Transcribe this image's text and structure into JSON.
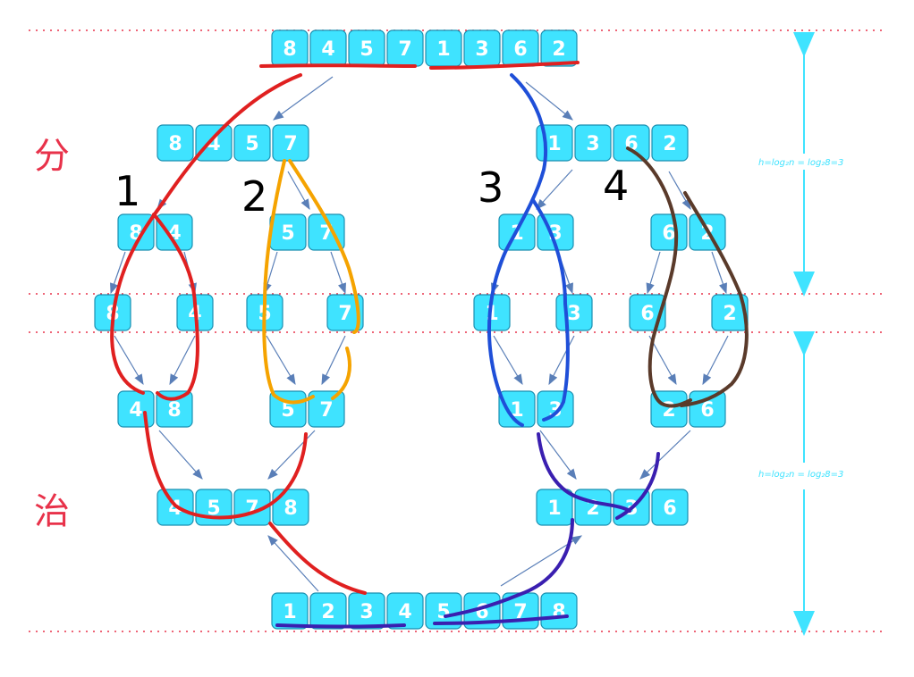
{
  "labels": {
    "divide": "分",
    "conquer": "治",
    "step1": "1",
    "step2": "2",
    "step3": "3",
    "step4": "4"
  },
  "formulas": {
    "top": "h=log₂n = log₂8=3",
    "bottom": "h=log₂n = log₂8=3"
  },
  "levels": {
    "root": [
      "8",
      "4",
      "5",
      "7",
      "1",
      "3",
      "6",
      "2"
    ],
    "half_left": [
      "8",
      "4",
      "5",
      "7"
    ],
    "half_right": [
      "1",
      "3",
      "6",
      "2"
    ],
    "quarters": [
      [
        "8",
        "4"
      ],
      [
        "5",
        "7"
      ],
      [
        "1",
        "3"
      ],
      [
        "6",
        "2"
      ]
    ],
    "singles": [
      "8",
      "4",
      "5",
      "7",
      "1",
      "3",
      "6",
      "2"
    ],
    "merged_pairs": [
      [
        "4",
        "8"
      ],
      [
        "5",
        "7"
      ],
      [
        "1",
        "3"
      ],
      [
        "2",
        "6"
      ]
    ],
    "merged_left": [
      "4",
      "5",
      "7",
      "8"
    ],
    "merged_right": [
      "1",
      "2",
      "3",
      "6"
    ],
    "result": [
      "1",
      "2",
      "3",
      "4",
      "5",
      "6",
      "7",
      "8"
    ]
  },
  "colors": {
    "cell_fill": "#3fe3ff",
    "cell_stroke": "#1b8fb0",
    "divider": "#e8324a",
    "arrow": "#5a7fb8",
    "formula_arrow": "#3fe3ff",
    "red_path": "#e02020",
    "orange_path": "#f5a300",
    "blue_path": "#1f4fd8",
    "brown_path": "#5a3a2a",
    "purple_path": "#3a1fb0"
  }
}
